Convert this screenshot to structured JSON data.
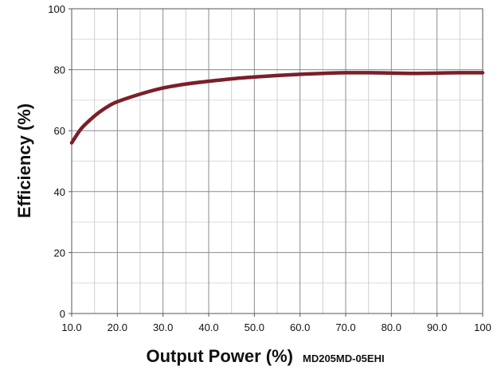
{
  "chart_data": {
    "type": "line",
    "title": "",
    "xlabel": "Output Power (%)",
    "ylabel": "Efficiency (%)",
    "model_label": "MD205MD-05EHI",
    "xlim": [
      10,
      100
    ],
    "ylim": [
      0,
      100
    ],
    "x_ticks": [
      10,
      20,
      30,
      40,
      50,
      60,
      70,
      80,
      90,
      100
    ],
    "x_tick_labels": [
      "10.0",
      "20.0",
      "30.0",
      "40.0",
      "50.0",
      "60.0",
      "70.0",
      "80.0",
      "90.0",
      "100"
    ],
    "y_ticks": [
      0,
      20,
      40,
      60,
      80,
      100
    ],
    "y_tick_labels": [
      "0",
      "20",
      "40",
      "60",
      "80",
      "100"
    ],
    "grid": true,
    "line_color": "#7a1f2b",
    "series": [
      {
        "x": [
          10,
          12,
          14,
          16,
          18,
          20,
          25,
          30,
          35,
          40,
          45,
          50,
          55,
          60,
          65,
          70,
          75,
          80,
          85,
          90,
          95,
          100
        ],
        "y": [
          56,
          60.5,
          63.5,
          66,
          68,
          69.5,
          72,
          74,
          75.3,
          76.2,
          77,
          77.6,
          78.1,
          78.5,
          78.8,
          79,
          79,
          78.9,
          78.8,
          78.9,
          79,
          79
        ]
      }
    ]
  }
}
